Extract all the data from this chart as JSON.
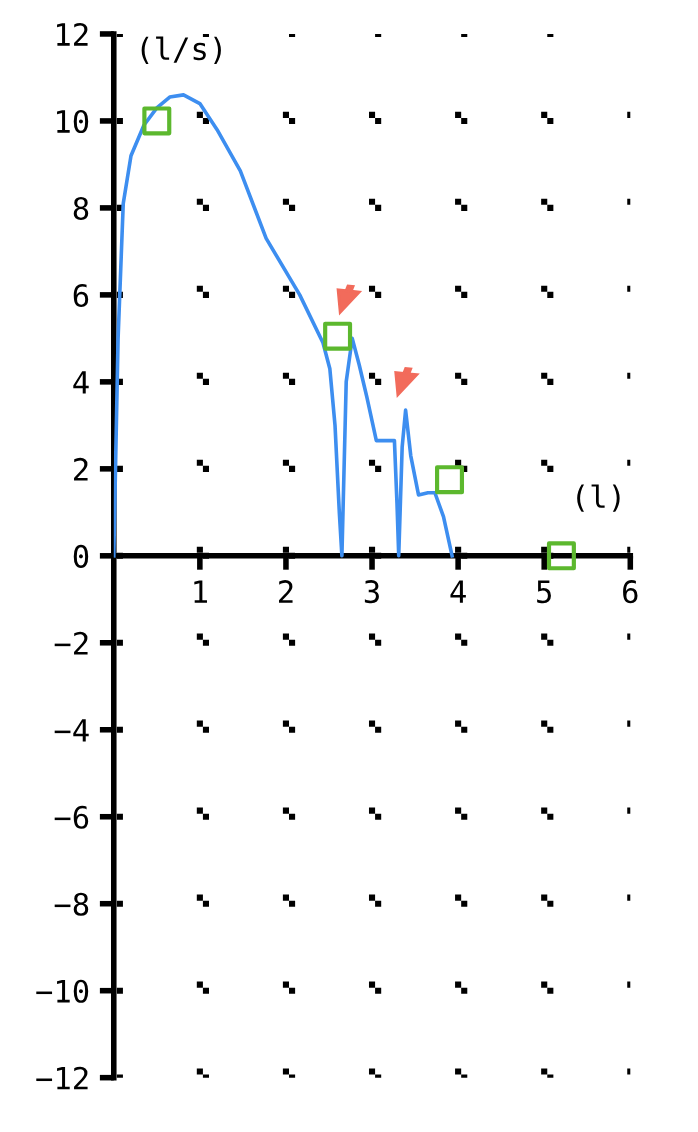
{
  "chart_data": {
    "type": "line",
    "xlabel": "(l)",
    "ylabel": "(l/s)",
    "xlim": [
      0,
      6
    ],
    "ylim": [
      -12,
      12
    ],
    "xticks": [
      1,
      2,
      3,
      4,
      5,
      6
    ],
    "yticks": [
      {
        "value": -12,
        "label": "−12"
      },
      {
        "value": -10,
        "label": "−10"
      },
      {
        "value": -8,
        "label": "−8"
      },
      {
        "value": -6,
        "label": "−6"
      },
      {
        "value": -4,
        "label": "−4"
      },
      {
        "value": -2,
        "label": "−2"
      },
      0,
      2,
      4,
      6,
      8,
      10,
      12
    ],
    "grid": true,
    "series": [
      {
        "color": "#3d8ef0",
        "x": [
          0,
          0.05,
          0.11,
          0.2,
          0.35,
          0.5,
          0.65,
          0.81,
          1.0,
          1.2,
          1.47,
          1.77,
          2.16,
          2.43,
          2.51,
          2.57,
          2.62,
          2.65,
          2.7,
          2.77,
          2.85,
          2.94,
          3.05,
          3.2,
          3.26,
          3.29,
          3.31,
          3.35,
          3.39,
          3.45,
          3.54,
          3.65,
          3.73,
          3.83,
          3.93
        ],
        "values": [
          0,
          5.0,
          8.1,
          9.2,
          9.9,
          10.3,
          10.55,
          10.6,
          10.4,
          9.8,
          8.85,
          7.3,
          6.0,
          4.9,
          4.3,
          3.0,
          1.0,
          0,
          4.0,
          5.0,
          4.4,
          3.65,
          2.65,
          2.65,
          2.65,
          1.2,
          0,
          2.5,
          3.35,
          2.3,
          1.4,
          1.45,
          1.45,
          0.9,
          0
        ]
      },
      {
        "type": "scatter",
        "marker": "square",
        "color": "#5cb82e",
        "x": [
          0.5,
          2.6,
          3.9,
          5.2
        ],
        "values": [
          10,
          5.05,
          1.75,
          0
        ]
      }
    ]
  }
}
